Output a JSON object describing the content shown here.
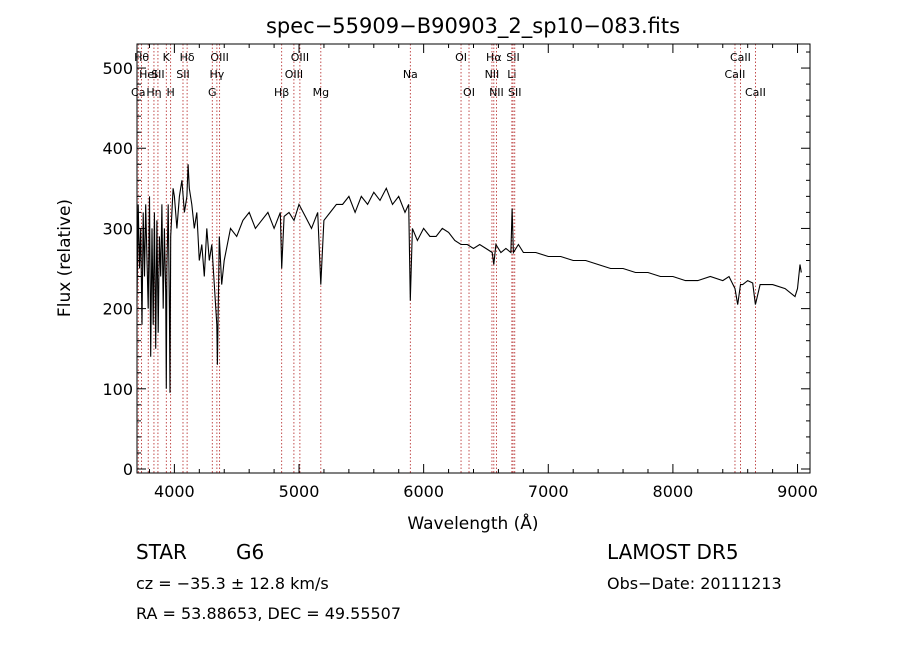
{
  "title": "spec−55909−B90903_2_sp10−083.fits",
  "info": {
    "object_class": "STAR",
    "subclass": "G6",
    "cz": "cz = −35.3 ± 12.8 km/s",
    "radec": "RA =  53.88653, DEC =  49.55507",
    "survey": "LAMOST  DR5",
    "obs_date": "Obs−Date: 20111213"
  },
  "colors": {
    "spectrum": "#000000",
    "lines": "#b22222",
    "axes": "#000000"
  },
  "chart_data": {
    "type": "line",
    "title": "spec−55909−B90903_2_sp10−083.fits",
    "xlabel": "Wavelength (Å)",
    "ylabel": "Flux (relative)",
    "xlim": [
      3700,
      9100
    ],
    "ylim": [
      -5,
      530
    ],
    "xticks": [
      4000,
      5000,
      6000,
      7000,
      8000,
      9000
    ],
    "yticks": [
      0,
      100,
      200,
      300,
      400,
      500
    ],
    "grid": false,
    "series": [
      {
        "x": [
          3700,
          3710,
          3720,
          3730,
          3740,
          3750,
          3760,
          3770,
          3780,
          3790,
          3800,
          3810,
          3820,
          3830,
          3840,
          3850,
          3860,
          3870,
          3880,
          3890,
          3900,
          3910,
          3920,
          3930,
          3935,
          3940,
          3950,
          3960,
          3965,
          3970,
          3980,
          3990,
          4000,
          4020,
          4040,
          4060,
          4080,
          4100,
          4110,
          4120,
          4140,
          4160,
          4180,
          4200,
          4220,
          4240,
          4260,
          4280,
          4300,
          4320,
          4340,
          4345,
          4360,
          4380,
          4400,
          4450,
          4500,
          4550,
          4600,
          4650,
          4700,
          4750,
          4800,
          4850,
          4861,
          4880,
          4920,
          4960,
          5000,
          5050,
          5100,
          5150,
          5175,
          5200,
          5250,
          5300,
          5350,
          5400,
          5450,
          5500,
          5550,
          5600,
          5650,
          5700,
          5750,
          5800,
          5850,
          5880,
          5893,
          5910,
          5950,
          6000,
          6050,
          6100,
          6150,
          6200,
          6250,
          6300,
          6350,
          6400,
          6450,
          6500,
          6550,
          6563,
          6580,
          6620,
          6660,
          6700,
          6710,
          6720,
          6760,
          6800,
          6900,
          7000,
          7100,
          7200,
          7300,
          7400,
          7500,
          7600,
          7700,
          7800,
          7900,
          8000,
          8100,
          8200,
          8300,
          8400,
          8450,
          8498,
          8520,
          8542,
          8560,
          8600,
          8640,
          8662,
          8700,
          8800,
          8900,
          8980,
          9000,
          9020,
          9030
        ],
        "y": [
          210,
          330,
          250,
          300,
          180,
          320,
          240,
          330,
          260,
          200,
          340,
          140,
          300,
          180,
          320,
          150,
          310,
          170,
          290,
          240,
          330,
          200,
          300,
          220,
          100,
          250,
          330,
          200,
          95,
          290,
          320,
          350,
          340,
          300,
          340,
          360,
          320,
          340,
          380,
          350,
          330,
          300,
          320,
          260,
          280,
          240,
          300,
          260,
          280,
          230,
          180,
          130,
          290,
          230,
          260,
          300,
          290,
          310,
          320,
          300,
          310,
          320,
          300,
          320,
          250,
          315,
          320,
          310,
          330,
          315,
          300,
          320,
          230,
          310,
          320,
          330,
          330,
          340,
          320,
          340,
          330,
          345,
          335,
          350,
          330,
          340,
          320,
          330,
          210,
          300,
          285,
          300,
          290,
          290,
          300,
          295,
          285,
          280,
          280,
          275,
          280,
          275,
          270,
          255,
          280,
          270,
          275,
          270,
          325,
          270,
          280,
          270,
          270,
          265,
          265,
          260,
          260,
          255,
          250,
          250,
          245,
          245,
          240,
          240,
          235,
          235,
          240,
          235,
          240,
          225,
          205,
          230,
          230,
          235,
          232,
          205,
          230,
          230,
          225,
          215,
          225,
          255,
          245
        ]
      }
    ],
    "line_markers": [
      {
        "name": "Ca",
        "x": 3710,
        "row": 3
      },
      {
        "name": "Hθ",
        "x": 3737,
        "row": 1
      },
      {
        "name": "HeI",
        "x": 3790,
        "row": 2
      },
      {
        "name": "Hη",
        "x": 3836,
        "row": 3
      },
      {
        "name": "K",
        "x": 3935,
        "row": 1
      },
      {
        "name": "SII",
        "x": 3868,
        "row": 2
      },
      {
        "name": "H",
        "x": 3970,
        "row": 3
      },
      {
        "name": "Hδ",
        "x": 4102,
        "row": 1
      },
      {
        "name": "SII",
        "x": 4069,
        "row": 2
      },
      {
        "name": "OIII",
        "x": 4363,
        "row": 1
      },
      {
        "name": "Hγ",
        "x": 4341,
        "row": 2
      },
      {
        "name": "G",
        "x": 4304,
        "row": 3
      },
      {
        "name": "Hβ",
        "x": 4861,
        "row": 3
      },
      {
        "name": "OIII",
        "x": 5007,
        "row": 1
      },
      {
        "name": "OIII",
        "x": 4959,
        "row": 2
      },
      {
        "name": "Mg",
        "x": 5175,
        "row": 3
      },
      {
        "name": "Na",
        "x": 5893,
        "row": 2
      },
      {
        "name": "OI",
        "x": 6300,
        "row": 1
      },
      {
        "name": "OI",
        "x": 6364,
        "row": 3
      },
      {
        "name": "Hα",
        "x": 6563,
        "row": 1
      },
      {
        "name": "NII",
        "x": 6548,
        "row": 2
      },
      {
        "name": "NII",
        "x": 6584,
        "row": 3
      },
      {
        "name": "SII",
        "x": 6717,
        "row": 1
      },
      {
        "name": "Li",
        "x": 6708,
        "row": 2
      },
      {
        "name": "SII",
        "x": 6731,
        "row": 3
      },
      {
        "name": "CaII",
        "x": 8542,
        "row": 1
      },
      {
        "name": "CaII",
        "x": 8498,
        "row": 2
      },
      {
        "name": "CaII",
        "x": 8662,
        "row": 3
      }
    ]
  }
}
